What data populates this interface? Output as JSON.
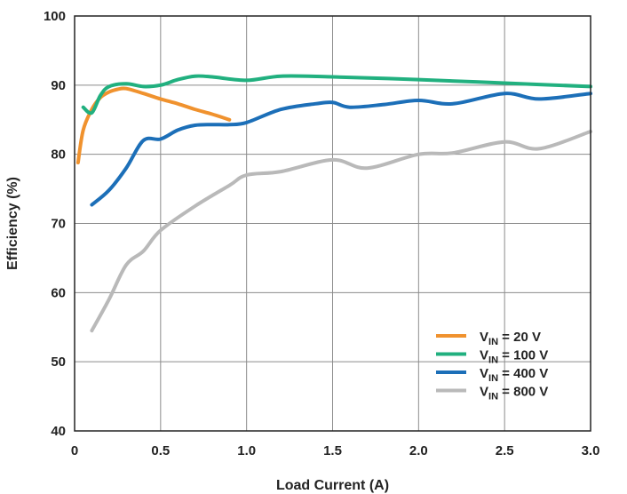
{
  "chart_data": {
    "type": "line",
    "title": "",
    "xlabel": "Load Current (A)",
    "ylabel": "Efficiency (%)",
    "xlim": [
      0,
      3.0
    ],
    "ylim": [
      40,
      100
    ],
    "xticks": [
      "0",
      "0.5",
      "1.0",
      "1.5",
      "2.0",
      "2.5",
      "3.0"
    ],
    "yticks": [
      "40",
      "50",
      "60",
      "70",
      "80",
      "90",
      "100"
    ],
    "grid": true,
    "legend_position": "bottom-right",
    "series": [
      {
        "name": "V_IN = 20 V",
        "legend_main": "V",
        "legend_sub": "IN",
        "legend_rest": " = 20 V",
        "color": "#f0922e",
        "x": [
          0.02,
          0.05,
          0.1,
          0.15,
          0.2,
          0.25,
          0.3,
          0.4,
          0.5,
          0.6,
          0.7,
          0.8,
          0.9
        ],
        "y": [
          78.8,
          83.5,
          86.5,
          88.2,
          89.0,
          89.4,
          89.5,
          88.8,
          88.0,
          87.3,
          86.5,
          85.8,
          85.0
        ]
      },
      {
        "name": "V_IN = 100 V",
        "legend_main": "V",
        "legend_sub": "IN",
        "legend_rest": " = 100 V",
        "color": "#21b07f",
        "x": [
          0.05,
          0.1,
          0.15,
          0.2,
          0.3,
          0.4,
          0.5,
          0.6,
          0.7,
          0.8,
          1.0,
          1.2,
          1.5,
          2.0,
          2.5,
          3.0
        ],
        "y": [
          86.8,
          86.0,
          88.5,
          89.8,
          90.2,
          89.8,
          90.0,
          90.8,
          91.3,
          91.2,
          90.7,
          91.3,
          91.2,
          90.8,
          90.3,
          89.8
        ]
      },
      {
        "name": "V_IN = 400 V",
        "legend_main": "V",
        "legend_sub": "IN",
        "legend_rest": " = 400 V",
        "color": "#1c6fb8",
        "x": [
          0.1,
          0.2,
          0.3,
          0.4,
          0.5,
          0.6,
          0.7,
          0.8,
          0.9,
          1.0,
          1.2,
          1.4,
          1.5,
          1.6,
          1.8,
          2.0,
          2.2,
          2.5,
          2.7,
          3.0
        ],
        "y": [
          72.7,
          74.8,
          78.0,
          82.0,
          82.2,
          83.5,
          84.2,
          84.3,
          84.3,
          84.6,
          86.5,
          87.3,
          87.5,
          86.8,
          87.2,
          87.8,
          87.3,
          88.8,
          88.0,
          88.8
        ]
      },
      {
        "name": "V_IN = 800 V",
        "legend_main": "V",
        "legend_sub": "IN",
        "legend_rest": " = 800 V",
        "color": "#b9b9b9",
        "x": [
          0.1,
          0.2,
          0.3,
          0.4,
          0.5,
          0.7,
          0.9,
          1.0,
          1.2,
          1.5,
          1.7,
          2.0,
          2.2,
          2.5,
          2.7,
          3.0
        ],
        "y": [
          54.5,
          59.0,
          64.0,
          66.0,
          69.0,
          72.5,
          75.5,
          77.0,
          77.5,
          79.2,
          78.0,
          80.0,
          80.2,
          81.8,
          80.8,
          83.3
        ]
      }
    ]
  }
}
